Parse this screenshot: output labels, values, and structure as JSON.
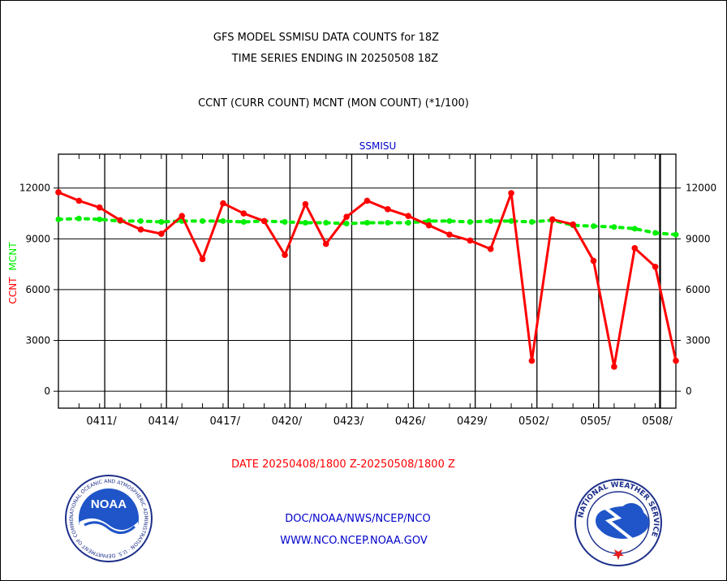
{
  "title_line1": "GFS MODEL SSMISU DATA COUNTS for 18Z",
  "title_line2": "TIME SERIES ENDING IN 20250508 18Z",
  "subtitle": "CCNT (CURR COUNT) MCNT (MON COUNT) (*1/100)",
  "date_range": "DATE 20250408/1800 Z-20250508/1800 Z",
  "footer_line1": "DOC/NOAA/NWS/NCEP/NCO",
  "footer_line2": "WWW.NCO.NCEP.NOAA.GOV",
  "logos": {
    "left": "NATIONAL OCEANIC AND ATMOSPHERIC ADMINISTRATION · U.S. DEPARTMENT OF COMMERCE",
    "left_center": "NOAA",
    "right": "NATIONAL WEATHER SERVICE"
  },
  "colors": {
    "ccnt": "#ff0000",
    "mcnt": "#00ee00",
    "panel_label": "#0000cc",
    "footer": "#0000cc"
  },
  "chart_data": {
    "type": "line",
    "panel_label": "SSMISU",
    "ylabel": {
      "ccnt": "CCNT",
      "mcnt": "MCNT"
    },
    "ylim": [
      -1000,
      14000
    ],
    "yticks": [
      0,
      3000,
      6000,
      9000,
      12000
    ],
    "yticklabels": [
      "0",
      "3000",
      "6000",
      "9000",
      "12000"
    ],
    "xlim": [
      "2025-04-08",
      "2025-05-08"
    ],
    "xticklabels": [
      "0411/",
      "0414/",
      "0417/",
      "0420/",
      "0423/",
      "0426/",
      "0429/",
      "0502/",
      "0505/",
      "0508/"
    ],
    "xtick_dates": [
      "2025-04-11",
      "2025-04-14",
      "2025-04-17",
      "2025-04-20",
      "2025-04-23",
      "2025-04-26",
      "2025-04-29",
      "2025-05-02",
      "2025-05-05",
      "2025-05-08"
    ],
    "x": [
      "2025-04-08",
      "2025-04-09",
      "2025-04-10",
      "2025-04-11",
      "2025-04-12",
      "2025-04-13",
      "2025-04-14",
      "2025-04-15",
      "2025-04-16",
      "2025-04-17",
      "2025-04-18",
      "2025-04-19",
      "2025-04-20",
      "2025-04-21",
      "2025-04-22",
      "2025-04-23",
      "2025-04-24",
      "2025-04-25",
      "2025-04-26",
      "2025-04-27",
      "2025-04-28",
      "2025-04-29",
      "2025-04-30",
      "2025-05-01",
      "2025-05-02",
      "2025-05-03",
      "2025-05-04",
      "2025-05-05",
      "2025-05-06",
      "2025-05-07",
      "2025-05-08"
    ],
    "series": [
      {
        "name": "CCNT",
        "color": "#ff0000",
        "values": [
          11750,
          11250,
          10850,
          10100,
          9550,
          9300,
          10350,
          7800,
          11100,
          10500,
          10050,
          8050,
          11050,
          8700,
          10300,
          11250,
          10750,
          10350,
          9800,
          9250,
          8900,
          8400,
          11700,
          1800,
          10150,
          9850,
          7700,
          1450,
          8450,
          7350,
          1800
        ]
      },
      {
        "name": "MCNT",
        "color": "#00ee00",
        "values": [
          10150,
          10200,
          10150,
          10050,
          10050,
          10000,
          10050,
          10050,
          10050,
          10000,
          10050,
          10000,
          9950,
          9950,
          9900,
          9950,
          9950,
          9950,
          10050,
          10050,
          10000,
          10050,
          10050,
          10000,
          10100,
          9800,
          9750,
          9700,
          9600,
          9350,
          9250
        ]
      }
    ]
  }
}
